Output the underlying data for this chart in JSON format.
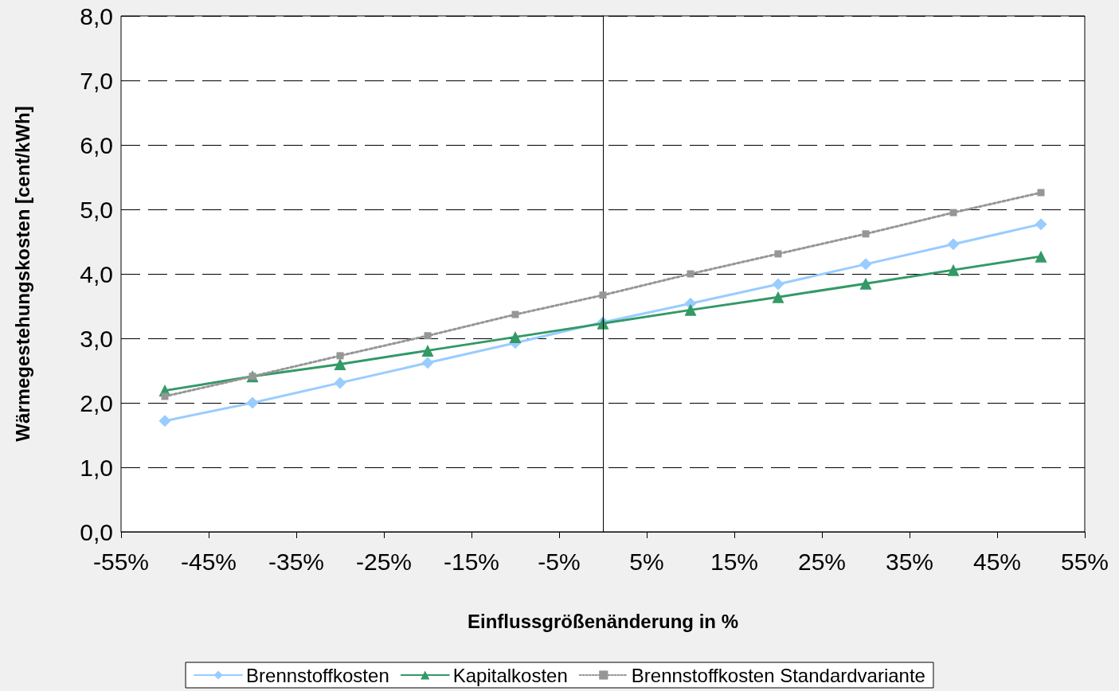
{
  "chart_data": {
    "type": "line",
    "xlabel": "Einflussgrößenänderung in %",
    "ylabel": "Wärmegestehungskosten [cent/kWh]",
    "x": [
      -50,
      -40,
      -30,
      -20,
      -10,
      0,
      10,
      20,
      30,
      40,
      50
    ],
    "series": [
      {
        "name": "Brennstoffkosten",
        "color": "#99ccff",
        "marker": "diamond",
        "line_style": "solid",
        "values": [
          1.72,
          2.0,
          2.31,
          2.62,
          2.93,
          3.25,
          3.54,
          3.84,
          4.15,
          4.46,
          4.77
        ]
      },
      {
        "name": "Kapitalkosten",
        "color": "#339966",
        "marker": "triangle",
        "line_style": "solid",
        "values": [
          2.19,
          2.41,
          2.6,
          2.81,
          3.02,
          3.23,
          3.44,
          3.64,
          3.85,
          4.06,
          4.27
        ]
      },
      {
        "name": "Brennstoffkosten Standardvariante",
        "color": "#969696",
        "marker": "square",
        "line_style": "dotted",
        "values": [
          2.1,
          2.41,
          2.73,
          3.04,
          3.37,
          3.67,
          4.0,
          4.31,
          4.62,
          4.95,
          5.26
        ]
      }
    ],
    "xlim": [
      -55,
      55
    ],
    "xticks": [
      {
        "value": -55,
        "label": "-55%"
      },
      {
        "value": -45,
        "label": "-45%"
      },
      {
        "value": -35,
        "label": "-35%"
      },
      {
        "value": -25,
        "label": "-25%"
      },
      {
        "value": -15,
        "label": "-15%"
      },
      {
        "value": -5,
        "label": "-5%"
      },
      {
        "value": 5,
        "label": "5%"
      },
      {
        "value": 15,
        "label": "15%"
      },
      {
        "value": 25,
        "label": "25%"
      },
      {
        "value": 35,
        "label": "35%"
      },
      {
        "value": 45,
        "label": "45%"
      },
      {
        "value": 55,
        "label": "55%"
      }
    ],
    "ylim": [
      0,
      8
    ],
    "yticks": [
      {
        "value": 0,
        "label": "0,0"
      },
      {
        "value": 1,
        "label": "1,0"
      },
      {
        "value": 2,
        "label": "2,0"
      },
      {
        "value": 3,
        "label": "3,0"
      },
      {
        "value": 4,
        "label": "4,0"
      },
      {
        "value": 5,
        "label": "5,0"
      },
      {
        "value": 6,
        "label": "6,0"
      },
      {
        "value": 7,
        "label": "7,0"
      },
      {
        "value": 8,
        "label": "8,0"
      }
    ],
    "ref_lines": [
      {
        "axis": "x",
        "value": 0,
        "color": "#000000",
        "line_style": "solid"
      }
    ],
    "grid": "y",
    "legend": "bottom"
  }
}
